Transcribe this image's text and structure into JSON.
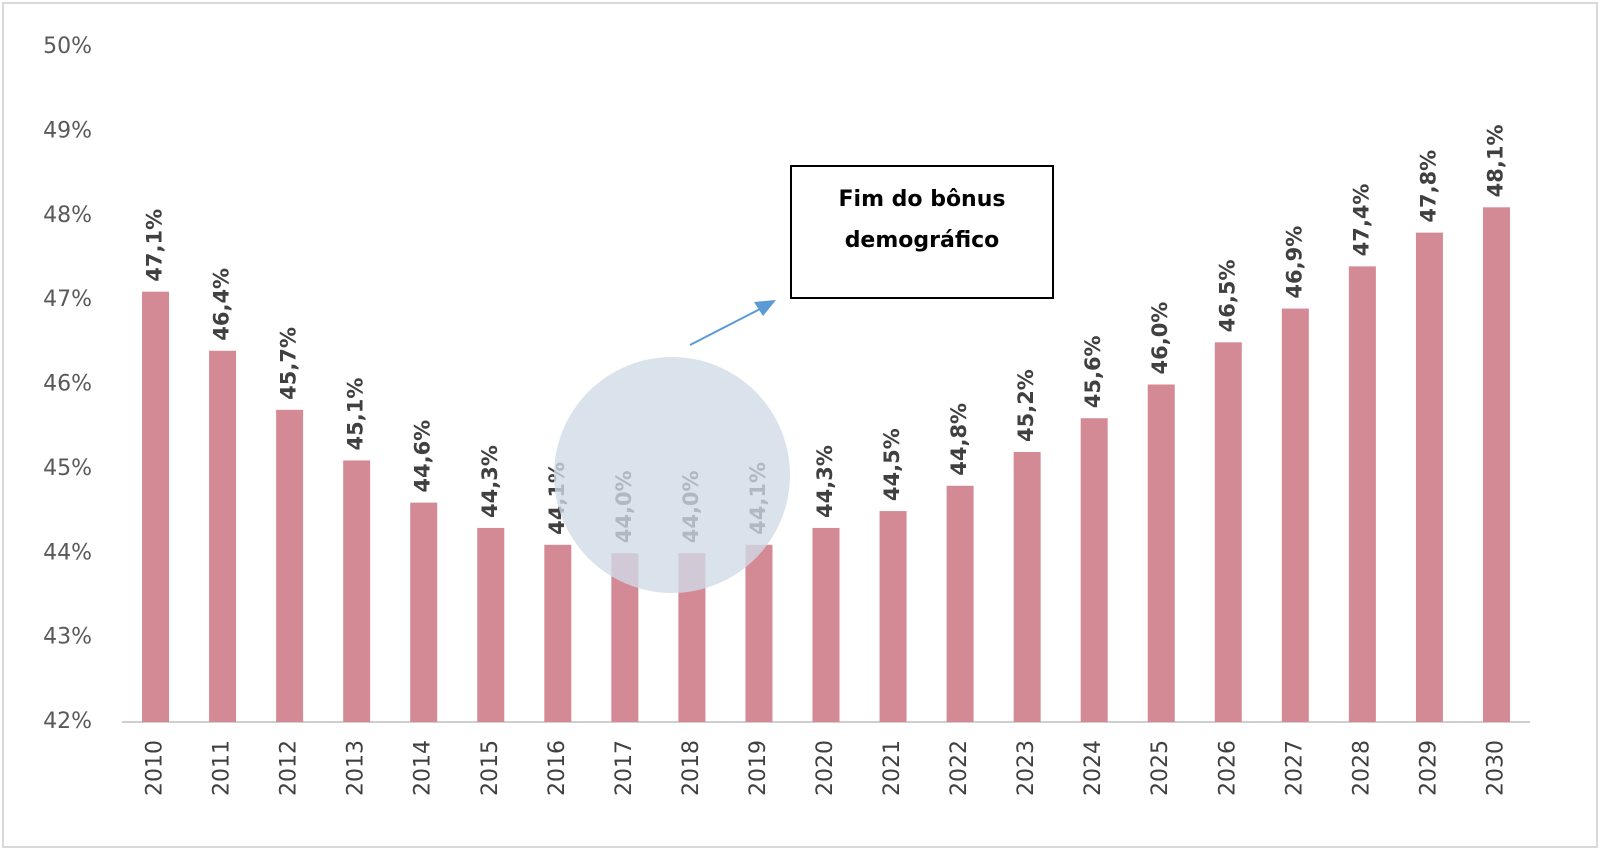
{
  "chart_data": {
    "type": "bar",
    "categories": [
      "2010",
      "2011",
      "2012",
      "2013",
      "2014",
      "2015",
      "2016",
      "2017",
      "2018",
      "2019",
      "2020",
      "2021",
      "2022",
      "2023",
      "2024",
      "2025",
      "2026",
      "2027",
      "2028",
      "2029",
      "2030"
    ],
    "values": [
      47.1,
      46.4,
      45.7,
      45.1,
      44.6,
      44.3,
      44.1,
      44.0,
      44.0,
      44.1,
      44.3,
      44.5,
      44.8,
      45.2,
      45.6,
      46.0,
      46.5,
      46.9,
      47.4,
      47.8,
      48.1
    ],
    "value_labels": [
      "47,1%",
      "46,4%",
      "45,7%",
      "45,1%",
      "44,6%",
      "44,3%",
      "44,1%",
      "44,0%",
      "44,0%",
      "44,1%",
      "44,3%",
      "44,5%",
      "44,8%",
      "45,2%",
      "45,6%",
      "46,0%",
      "46,5%",
      "46,9%",
      "47,4%",
      "47,8%",
      "48,1%"
    ],
    "color": "#d48a95",
    "ylim": [
      42,
      50
    ],
    "yticks": [
      {
        "value": 42,
        "label": "42%"
      },
      {
        "value": 43,
        "label": "43%"
      },
      {
        "value": 44,
        "label": "44%"
      },
      {
        "value": 45,
        "label": "45%"
      },
      {
        "value": 46,
        "label": "46%"
      },
      {
        "value": 47,
        "label": "47%"
      },
      {
        "value": 48,
        "label": "48%"
      },
      {
        "value": 49,
        "label": "49%"
      },
      {
        "value": 50,
        "label": "50%"
      }
    ],
    "grid": false,
    "annotation": [
      "Fim do bônus",
      "demográfico"
    ]
  }
}
